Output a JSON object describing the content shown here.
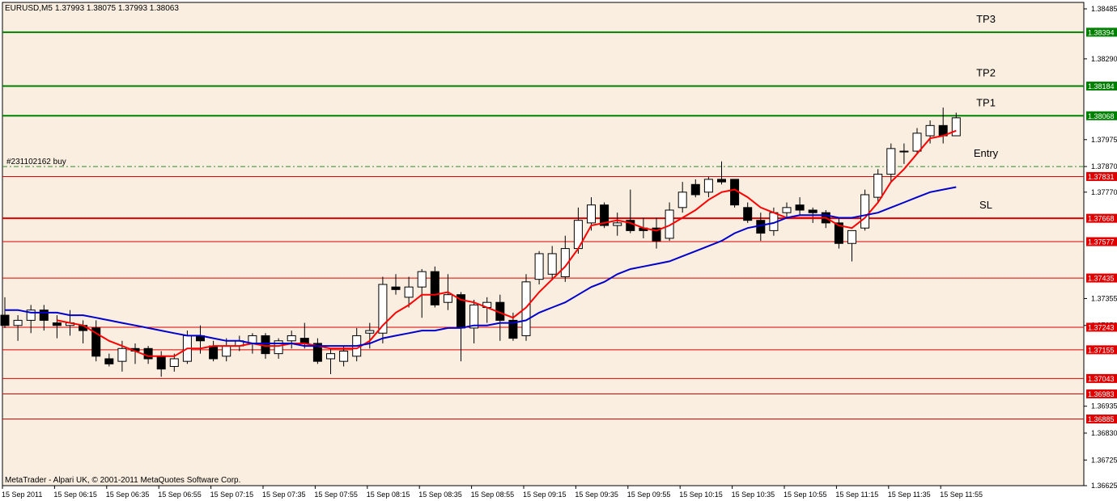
{
  "header": {
    "symbol_text": "EURUSD,M5",
    "ohlc_text": "1.37993 1.38075 1.37993 1.38063"
  },
  "footer": {
    "copyright": "MetaTrader - Alpari UK, © 2001-2011 MetaQuotes Software Corp."
  },
  "colors": {
    "background": "#f9eee0",
    "bull_body": "#ffffff",
    "bear_body": "#000000",
    "ma_fast": "#ff0000",
    "ma_slow": "#0000cc",
    "tp_line": "#008000",
    "sr_line": "#e00000",
    "entry_line": "#2e8b2e"
  },
  "chart_data": {
    "type": "candlestick",
    "symbol": "EURUSD",
    "timeframe": "M5",
    "ylim": [
      1.3662,
      1.3846
    ],
    "y_ticks": [
      1.38485,
      1.3829,
      1.37975,
      1.3787,
      1.3777,
      1.37355,
      1.3725,
      1.36935,
      1.3683,
      1.36725,
      1.36625
    ],
    "x_ticks": [
      {
        "index": 0,
        "label": "15 Sep 2011"
      },
      {
        "index": 4,
        "label": "15 Sep 06:15"
      },
      {
        "index": 8,
        "label": "15 Sep 06:35"
      },
      {
        "index": 12,
        "label": "15 Sep 06:55"
      },
      {
        "index": 16,
        "label": "15 Sep 07:15"
      },
      {
        "index": 20,
        "label": "15 Sep 07:35"
      },
      {
        "index": 24,
        "label": "15 Sep 07:55"
      },
      {
        "index": 28,
        "label": "15 Sep 08:15"
      },
      {
        "index": 32,
        "label": "15 Sep 08:35"
      },
      {
        "index": 36,
        "label": "15 Sep 08:55"
      },
      {
        "index": 40,
        "label": "15 Sep 09:15"
      },
      {
        "index": 44,
        "label": "15 Sep 09:35"
      },
      {
        "index": 48,
        "label": "15 Sep 09:55"
      },
      {
        "index": 52,
        "label": "15 Sep 10:15"
      },
      {
        "index": 56,
        "label": "15 Sep 10:35"
      },
      {
        "index": 60,
        "label": "15 Sep 10:55"
      },
      {
        "index": 64,
        "label": "15 Sep 11:15"
      },
      {
        "index": 68,
        "label": "15 Sep 11:35"
      },
      {
        "index": 72,
        "label": "15 Sep 11:55"
      }
    ],
    "candles": [
      {
        "o": 1.3729,
        "h": 1.3736,
        "l": 1.3724,
        "c": 1.3725
      },
      {
        "o": 1.3725,
        "h": 1.3729,
        "l": 1.3719,
        "c": 1.3727
      },
      {
        "o": 1.3727,
        "h": 1.3733,
        "l": 1.3722,
        "c": 1.3731
      },
      {
        "o": 1.3731,
        "h": 1.3733,
        "l": 1.3723,
        "c": 1.3727
      },
      {
        "o": 1.3726,
        "h": 1.3729,
        "l": 1.372,
        "c": 1.3725
      },
      {
        "o": 1.3725,
        "h": 1.3731,
        "l": 1.3721,
        "c": 1.3726
      },
      {
        "o": 1.3725,
        "h": 1.3727,
        "l": 1.3718,
        "c": 1.3723
      },
      {
        "o": 1.3724,
        "h": 1.3727,
        "l": 1.3711,
        "c": 1.3713
      },
      {
        "o": 1.3712,
        "h": 1.3714,
        "l": 1.3709,
        "c": 1.371
      },
      {
        "o": 1.3711,
        "h": 1.3719,
        "l": 1.3707,
        "c": 1.3716
      },
      {
        "o": 1.3716,
        "h": 1.3718,
        "l": 1.371,
        "c": 1.3715
      },
      {
        "o": 1.3716,
        "h": 1.3717,
        "l": 1.371,
        "c": 1.3712
      },
      {
        "o": 1.3713,
        "h": 1.3715,
        "l": 1.3705,
        "c": 1.3708
      },
      {
        "o": 1.3709,
        "h": 1.3714,
        "l": 1.3707,
        "c": 1.3712
      },
      {
        "o": 1.3711,
        "h": 1.3723,
        "l": 1.371,
        "c": 1.3721
      },
      {
        "o": 1.3721,
        "h": 1.3725,
        "l": 1.3714,
        "c": 1.3719
      },
      {
        "o": 1.3717,
        "h": 1.3719,
        "l": 1.3711,
        "c": 1.3712
      },
      {
        "o": 1.3713,
        "h": 1.372,
        "l": 1.3711,
        "c": 1.3717
      },
      {
        "o": 1.3717,
        "h": 1.3721,
        "l": 1.3715,
        "c": 1.3719
      },
      {
        "o": 1.3718,
        "h": 1.3722,
        "l": 1.3714,
        "c": 1.3721
      },
      {
        "o": 1.3721,
        "h": 1.3722,
        "l": 1.3712,
        "c": 1.3714
      },
      {
        "o": 1.3714,
        "h": 1.372,
        "l": 1.3712,
        "c": 1.3719
      },
      {
        "o": 1.3719,
        "h": 1.3723,
        "l": 1.3716,
        "c": 1.3721
      },
      {
        "o": 1.372,
        "h": 1.3726,
        "l": 1.3716,
        "c": 1.3718
      },
      {
        "o": 1.3718,
        "h": 1.372,
        "l": 1.371,
        "c": 1.3711
      },
      {
        "o": 1.3712,
        "h": 1.3716,
        "l": 1.3706,
        "c": 1.3714
      },
      {
        "o": 1.3711,
        "h": 1.3717,
        "l": 1.3709,
        "c": 1.3715
      },
      {
        "o": 1.3713,
        "h": 1.3724,
        "l": 1.3711,
        "c": 1.3721
      },
      {
        "o": 1.3722,
        "h": 1.3726,
        "l": 1.3716,
        "c": 1.3723
      },
      {
        "o": 1.3722,
        "h": 1.3744,
        "l": 1.3718,
        "c": 1.3741
      },
      {
        "o": 1.374,
        "h": 1.3745,
        "l": 1.3737,
        "c": 1.3739
      },
      {
        "o": 1.3736,
        "h": 1.3744,
        "l": 1.3732,
        "c": 1.374
      },
      {
        "o": 1.374,
        "h": 1.3747,
        "l": 1.3728,
        "c": 1.3746
      },
      {
        "o": 1.3746,
        "h": 1.3748,
        "l": 1.3732,
        "c": 1.3733
      },
      {
        "o": 1.3734,
        "h": 1.3745,
        "l": 1.3731,
        "c": 1.3737
      },
      {
        "o": 1.3737,
        "h": 1.3738,
        "l": 1.3711,
        "c": 1.3724
      },
      {
        "o": 1.3724,
        "h": 1.3735,
        "l": 1.3718,
        "c": 1.3733
      },
      {
        "o": 1.3732,
        "h": 1.3736,
        "l": 1.3726,
        "c": 1.3734
      },
      {
        "o": 1.3734,
        "h": 1.3737,
        "l": 1.3719,
        "c": 1.3727
      },
      {
        "o": 1.3727,
        "h": 1.373,
        "l": 1.3719,
        "c": 1.372
      },
      {
        "o": 1.3721,
        "h": 1.3745,
        "l": 1.3719,
        "c": 1.3742
      },
      {
        "o": 1.3743,
        "h": 1.3754,
        "l": 1.3741,
        "c": 1.3753
      },
      {
        "o": 1.3745,
        "h": 1.3756,
        "l": 1.3743,
        "c": 1.3753
      },
      {
        "o": 1.3744,
        "h": 1.376,
        "l": 1.3742,
        "c": 1.3755
      },
      {
        "o": 1.3755,
        "h": 1.3771,
        "l": 1.3753,
        "c": 1.3766
      },
      {
        "o": 1.3765,
        "h": 1.3775,
        "l": 1.3762,
        "c": 1.3772
      },
      {
        "o": 1.3772,
        "h": 1.3773,
        "l": 1.3763,
        "c": 1.3764
      },
      {
        "o": 1.3764,
        "h": 1.3769,
        "l": 1.376,
        "c": 1.3765
      },
      {
        "o": 1.3766,
        "h": 1.3778,
        "l": 1.3761,
        "c": 1.3762
      },
      {
        "o": 1.3763,
        "h": 1.3767,
        "l": 1.3759,
        "c": 1.3762
      },
      {
        "o": 1.3763,
        "h": 1.3767,
        "l": 1.3755,
        "c": 1.3758
      },
      {
        "o": 1.3759,
        "h": 1.3773,
        "l": 1.3758,
        "c": 1.377
      },
      {
        "o": 1.3771,
        "h": 1.3781,
        "l": 1.3769,
        "c": 1.3777
      },
      {
        "o": 1.378,
        "h": 1.3782,
        "l": 1.3775,
        "c": 1.3776
      },
      {
        "o": 1.3777,
        "h": 1.3783,
        "l": 1.3775,
        "c": 1.3782
      },
      {
        "o": 1.3782,
        "h": 1.3789,
        "l": 1.378,
        "c": 1.3781
      },
      {
        "o": 1.3782,
        "h": 1.3782,
        "l": 1.3771,
        "c": 1.3772
      },
      {
        "o": 1.3771,
        "h": 1.3773,
        "l": 1.3765,
        "c": 1.3766
      },
      {
        "o": 1.3766,
        "h": 1.3769,
        "l": 1.3758,
        "c": 1.3761
      },
      {
        "o": 1.3762,
        "h": 1.3771,
        "l": 1.376,
        "c": 1.3769
      },
      {
        "o": 1.3769,
        "h": 1.3773,
        "l": 1.3767,
        "c": 1.3771
      },
      {
        "o": 1.3772,
        "h": 1.3775,
        "l": 1.3768,
        "c": 1.377
      },
      {
        "o": 1.377,
        "h": 1.3771,
        "l": 1.3765,
        "c": 1.3769
      },
      {
        "o": 1.3769,
        "h": 1.377,
        "l": 1.3763,
        "c": 1.3765
      },
      {
        "o": 1.3765,
        "h": 1.3767,
        "l": 1.3755,
        "c": 1.3757
      },
      {
        "o": 1.3757,
        "h": 1.3762,
        "l": 1.375,
        "c": 1.3762
      },
      {
        "o": 1.3763,
        "h": 1.3778,
        "l": 1.3762,
        "c": 1.3776
      },
      {
        "o": 1.3775,
        "h": 1.3786,
        "l": 1.3773,
        "c": 1.3784
      },
      {
        "o": 1.3784,
        "h": 1.3796,
        "l": 1.3781,
        "c": 1.3794
      },
      {
        "o": 1.3793,
        "h": 1.3796,
        "l": 1.3788,
        "c": 1.3793
      },
      {
        "o": 1.3793,
        "h": 1.3802,
        "l": 1.3792,
        "c": 1.38
      },
      {
        "o": 1.3799,
        "h": 1.3805,
        "l": 1.3796,
        "c": 1.3803
      },
      {
        "o": 1.3803,
        "h": 1.381,
        "l": 1.3796,
        "c": 1.3799
      },
      {
        "o": 1.3799,
        "h": 1.3808,
        "l": 1.3799,
        "c": 1.3806
      }
    ],
    "series": [
      {
        "values": [
          null,
          null,
          null,
          null,
          1.3727,
          1.3726,
          1.3725,
          1.3722,
          1.3719,
          1.3717,
          1.3715,
          1.3713,
          1.3713,
          1.3713,
          1.3716,
          1.3716,
          1.3717,
          1.3717,
          1.3717,
          1.3718,
          1.3717,
          1.3717,
          1.3718,
          1.3718,
          1.3717,
          1.3716,
          1.3716,
          1.3716,
          1.3719,
          1.3725,
          1.373,
          1.3733,
          1.3737,
          1.3737,
          1.3738,
          1.3735,
          1.3734,
          1.3732,
          1.373,
          1.3728,
          1.3732,
          1.3738,
          1.3743,
          1.3748,
          1.3755,
          1.3764,
          1.3765,
          1.3766,
          1.3765,
          1.3763,
          1.3762,
          1.3764,
          1.3767,
          1.377,
          1.3774,
          1.3777,
          1.3778,
          1.3775,
          1.3771,
          1.3769,
          1.3767,
          1.3767,
          1.3767,
          1.3767,
          1.3764,
          1.3763,
          1.3767,
          1.3773,
          1.3781,
          1.3786,
          1.3792,
          1.3798,
          1.3799,
          1.3801
        ]
      },
      {
        "values": [
          1.3731,
          1.3731,
          1.373,
          1.373,
          1.373,
          1.3729,
          1.3729,
          1.3728,
          1.3727,
          1.3726,
          1.3725,
          1.3724,
          1.3723,
          1.3722,
          1.3721,
          1.3721,
          1.372,
          1.3719,
          1.3719,
          1.3718,
          1.3718,
          1.3718,
          1.3718,
          1.3717,
          1.3717,
          1.3717,
          1.3717,
          1.3717,
          1.3718,
          1.372,
          1.3721,
          1.3722,
          1.3723,
          1.3723,
          1.3724,
          1.3724,
          1.3725,
          1.3725,
          1.3726,
          1.3726,
          1.3727,
          1.373,
          1.3732,
          1.3734,
          1.3737,
          1.374,
          1.3742,
          1.3745,
          1.3747,
          1.3748,
          1.3749,
          1.375,
          1.3752,
          1.3754,
          1.3756,
          1.3758,
          1.3761,
          1.3763,
          1.3764,
          1.3765,
          1.3767,
          1.3768,
          1.3768,
          1.3768,
          1.3767,
          1.3767,
          1.3768,
          1.3769,
          1.3771,
          1.3773,
          1.3775,
          1.3777,
          1.3778,
          1.3779
        ]
      }
    ],
    "levels": [
      {
        "price": 1.38394,
        "label": "1.38394",
        "kind": "tp",
        "text": "TP3"
      },
      {
        "price": 1.38184,
        "label": "1.38184",
        "kind": "tp",
        "text": "TP2"
      },
      {
        "price": 1.38068,
        "label": "1.38068",
        "kind": "tp",
        "text": "TP1"
      },
      {
        "price": 1.3787,
        "label": "",
        "kind": "entry",
        "text": "Entry",
        "order_text": "#231102162 buy"
      },
      {
        "price": 1.37831,
        "label": "1.37831",
        "kind": "sr",
        "text": ""
      },
      {
        "price": 1.37668,
        "label": "1.37668",
        "kind": "sl",
        "text": "SL"
      },
      {
        "price": 1.37577,
        "label": "1.37577",
        "kind": "sr",
        "text": ""
      },
      {
        "price": 1.37435,
        "label": "1.37435",
        "kind": "sr",
        "text": ""
      },
      {
        "price": 1.37243,
        "label": "1.37243",
        "kind": "sr",
        "text": ""
      },
      {
        "price": 1.37155,
        "label": "1.37155",
        "kind": "sr",
        "text": ""
      },
      {
        "price": 1.37043,
        "label": "1.37043",
        "kind": "sr",
        "text": ""
      },
      {
        "price": 1.36983,
        "label": "1.36983",
        "kind": "sr",
        "text": ""
      },
      {
        "price": 1.36885,
        "label": "1.36885",
        "kind": "sr",
        "text": ""
      }
    ]
  }
}
